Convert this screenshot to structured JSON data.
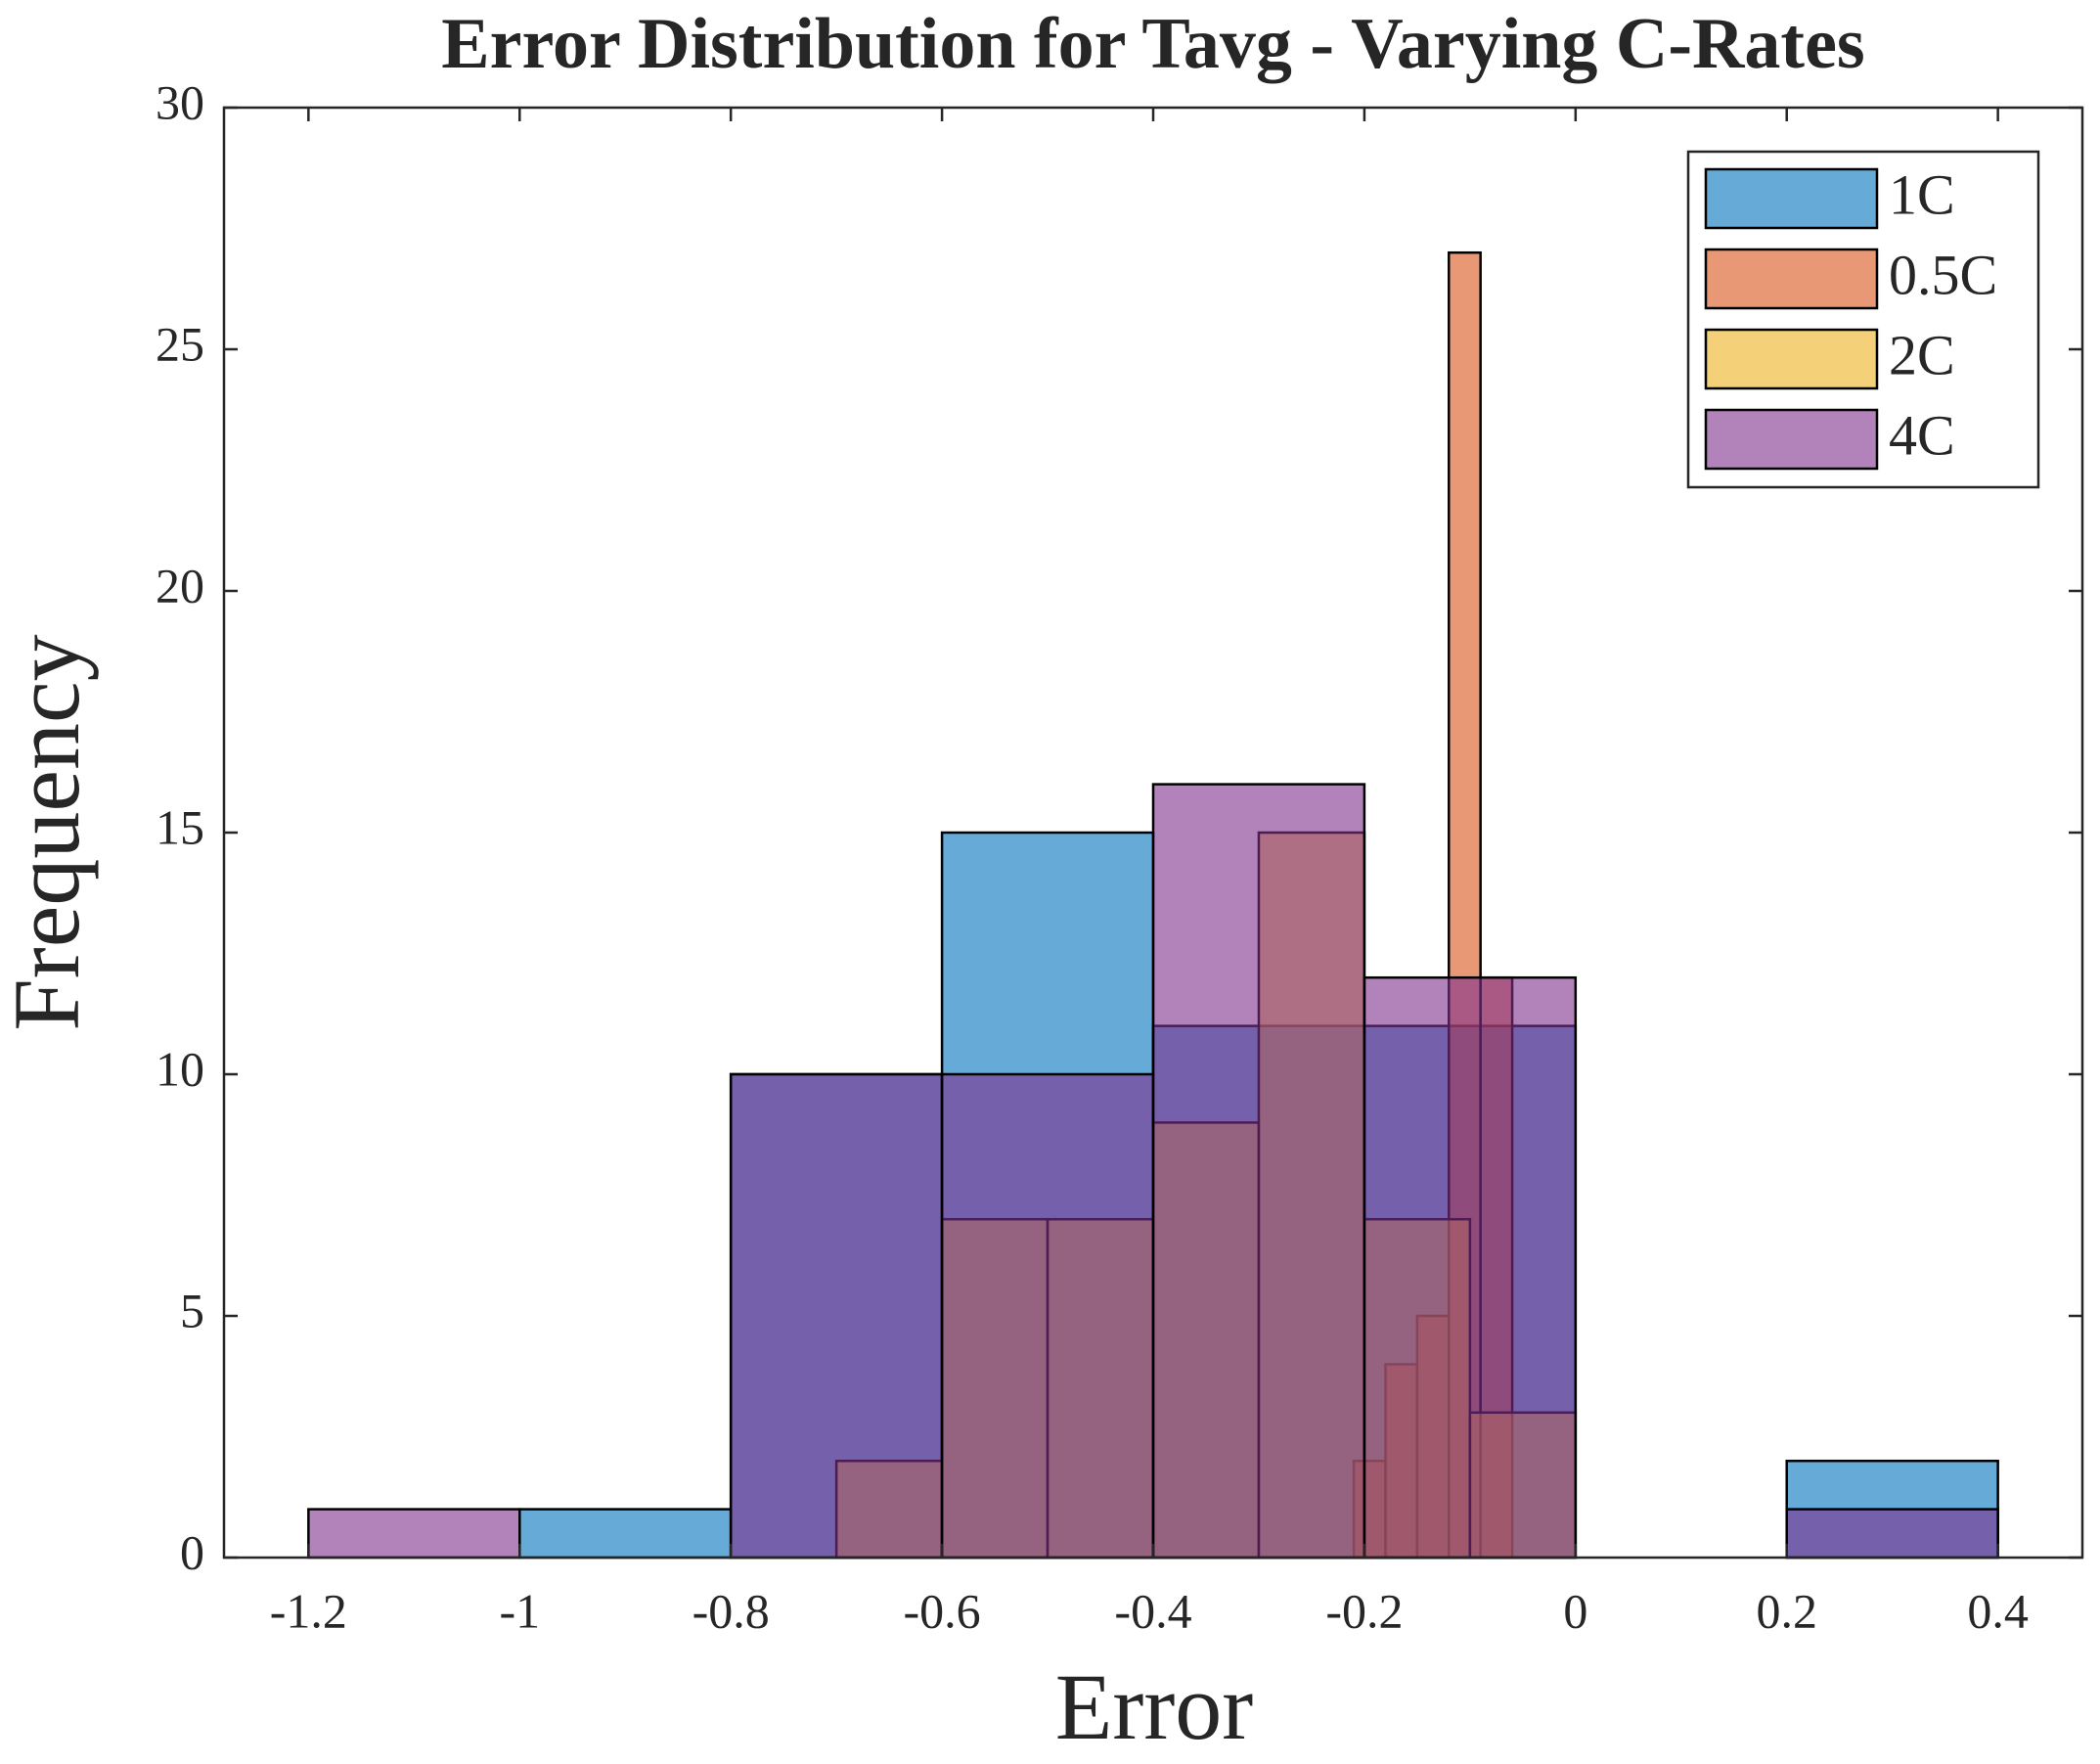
{
  "chart_data": {
    "type": "histogram",
    "title": "Error Distribution for Tavg - Varying C-Rates",
    "x_label": "Error",
    "y_label": "Frequency",
    "xlim": [
      -1.28,
      0.48
    ],
    "ylim": [
      0,
      30
    ],
    "xticks": [
      -1.2,
      -1,
      -0.8,
      -0.6,
      -0.4,
      -0.2,
      0,
      0.2,
      0.4
    ],
    "yticks": [
      0,
      5,
      10,
      15,
      20,
      25,
      30
    ],
    "opacity": 0.6,
    "legend": "upper right",
    "series": [
      {
        "name": "1C",
        "color": "#0072bd",
        "bins": [
          -1,
          -0.8,
          -0.6,
          -0.4,
          -0.2,
          0,
          0.2,
          0.4
        ],
        "values": [
          1,
          10,
          15,
          11,
          11,
          0,
          2
        ]
      },
      {
        "name": "0.5C",
        "color": "#d95319",
        "bins": [
          -0.21,
          -0.18,
          -0.15,
          -0.12,
          -0.09,
          -0.06
        ],
        "values": [
          2,
          4,
          5,
          27,
          12
        ]
      },
      {
        "name": "2C",
        "color": "#edb120",
        "bins": [
          -0.7,
          -0.6,
          -0.5,
          -0.4,
          -0.3,
          -0.2,
          -0.1,
          0
        ],
        "values": [
          2,
          7,
          7,
          9,
          15,
          7,
          3
        ]
      },
      {
        "name": "4C",
        "color": "#7e2f8e",
        "bins": [
          -1.2,
          -1,
          -0.8,
          -0.6,
          -0.4,
          -0.2,
          0,
          0.2,
          0.4
        ],
        "values": [
          1,
          0,
          10,
          10,
          16,
          12,
          0,
          1
        ]
      }
    ]
  }
}
